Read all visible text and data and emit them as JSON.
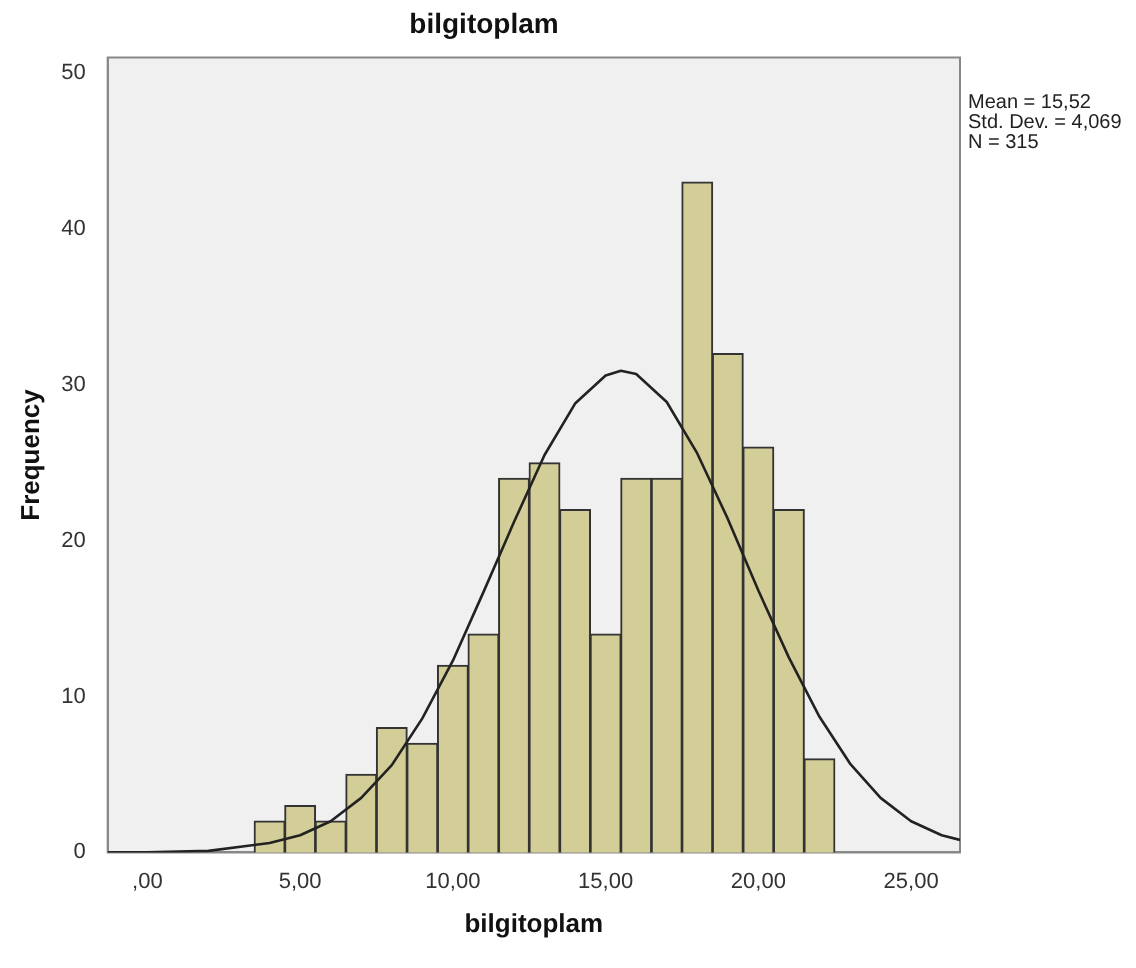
{
  "chart_data": {
    "type": "histogram",
    "title": "bilgitoplam",
    "xlabel": "bilgitoplam",
    "ylabel": "Frequency",
    "bins": [
      3.5,
      4.5,
      5.5,
      6.5,
      7.5,
      8.5,
      9.5,
      10.5,
      11.5,
      12.5,
      13.5,
      14.5,
      15.5,
      16.5,
      17.5,
      18.5,
      19.5,
      20.5,
      21.5,
      22.5
    ],
    "values": [
      2,
      3,
      2,
      5,
      8,
      7,
      12,
      14,
      24,
      25,
      22,
      14,
      24,
      24,
      43,
      32,
      26,
      22,
      6
    ],
    "color": "#d3ce97",
    "series": [
      {
        "type": "line",
        "color": "#222222",
        "x": [
          -1.3,
          0,
          2,
          4,
          5,
          6,
          7,
          8,
          9,
          10,
          11,
          12,
          13,
          14,
          15,
          15.5,
          16,
          17,
          18,
          19,
          20,
          21,
          22,
          23,
          24,
          25,
          26,
          26.6
        ],
        "values": [
          0,
          0,
          0.1,
          0.6,
          1.1,
          2,
          3.5,
          5.6,
          8.6,
          12.3,
          16.7,
          21.2,
          25.5,
          28.8,
          30.6,
          30.9,
          30.7,
          28.9,
          25.6,
          21.4,
          16.8,
          12.5,
          8.7,
          5.7,
          3.5,
          2,
          1.1,
          0.8
        ]
      }
    ],
    "xlim": [
      -1.3,
      26.6
    ],
    "ylim": [
      0,
      51
    ],
    "xticks": [
      {
        "value": 0,
        "label": ",00"
      },
      {
        "value": 5,
        "label": "5,00"
      },
      {
        "value": 10,
        "label": "10,00"
      },
      {
        "value": 15,
        "label": "15,00"
      },
      {
        "value": 20,
        "label": "20,00"
      },
      {
        "value": 25,
        "label": "25,00"
      }
    ],
    "yticks": [
      0,
      10,
      20,
      30,
      40,
      50
    ],
    "annotations": [
      "Mean = 15,52",
      "Std. Dev. = 4,069",
      "N = 315"
    ],
    "grid": false,
    "legend": false
  }
}
